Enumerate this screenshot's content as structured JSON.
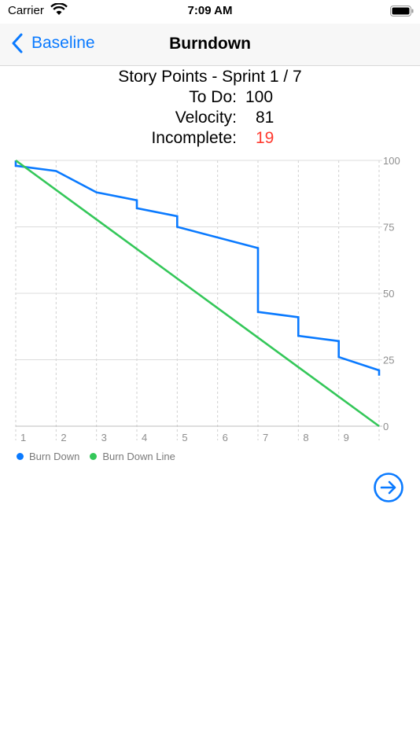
{
  "status": {
    "carrier": "Carrier",
    "time": "7:09 AM"
  },
  "nav": {
    "back_label": "Baseline",
    "title": "Burndown"
  },
  "summary": {
    "title": "Story Points - Sprint 1 / 7",
    "todo_label": "To Do:",
    "todo_value": "100",
    "velocity_label": "Velocity:",
    "velocity_value": "81",
    "incomplete_label": "Incomplete:",
    "incomplete_value": "19"
  },
  "colors": {
    "accent": "#0a7aff",
    "burn_down": "#0a7aff",
    "burn_down_line": "#34c759",
    "incomplete": "#ff3b30"
  },
  "chart_data": {
    "type": "line",
    "x_ticks": [
      "1",
      "2",
      "3",
      "4",
      "5",
      "6",
      "7",
      "8",
      "9"
    ],
    "y_ticks": [
      "100",
      "75",
      "50",
      "25",
      "0"
    ],
    "xlim": [
      1,
      10
    ],
    "ylim": [
      0,
      100
    ],
    "series": [
      {
        "name": "Burn Down",
        "color": "#0a7aff",
        "points": [
          [
            1,
            100
          ],
          [
            1,
            98
          ],
          [
            2,
            96
          ],
          [
            3,
            88
          ],
          [
            4,
            85
          ],
          [
            4,
            82
          ],
          [
            5,
            79
          ],
          [
            5,
            75
          ],
          [
            7,
            67
          ],
          [
            7,
            43
          ],
          [
            8,
            41
          ],
          [
            8,
            34
          ],
          [
            9,
            32
          ],
          [
            9,
            26
          ],
          [
            10,
            21
          ],
          [
            10,
            19
          ]
        ]
      },
      {
        "name": "Burn Down Line",
        "color": "#34c759",
        "points": [
          [
            1,
            100
          ],
          [
            10,
            0
          ]
        ]
      }
    ],
    "legend_position": "bottom-left",
    "grid": true
  },
  "icons": {
    "back": "chevron-left-icon",
    "next": "arrow-right-circle-icon"
  }
}
